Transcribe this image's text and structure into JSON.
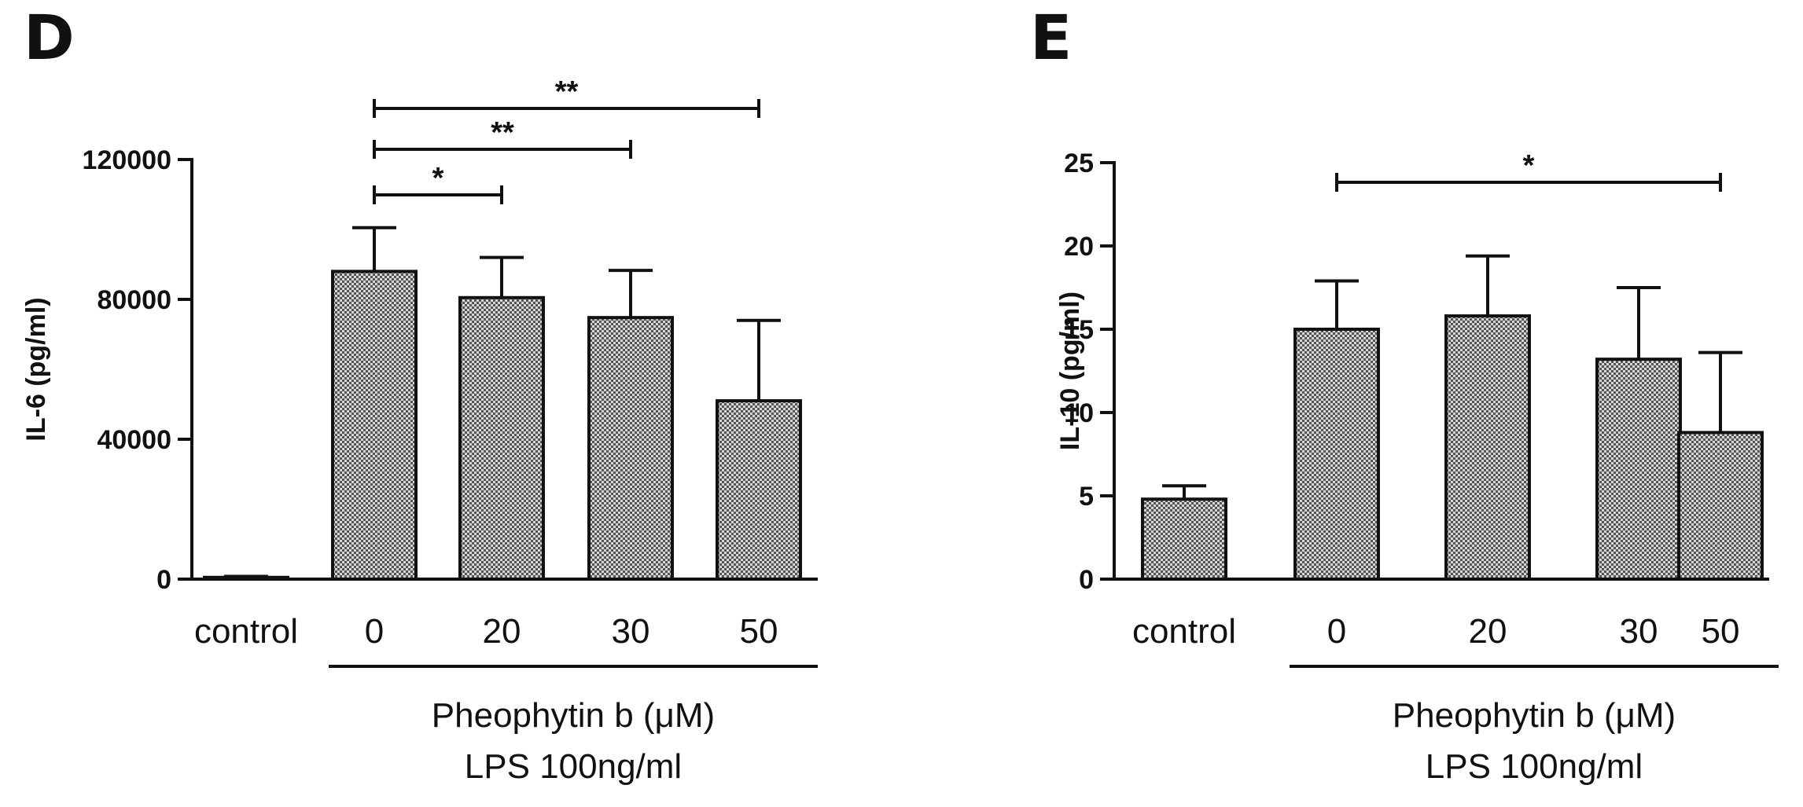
{
  "chart_data": [
    {
      "panel": "D",
      "type": "bar",
      "categories": [
        "control",
        "0",
        "20",
        "30",
        "50"
      ],
      "values": [
        500,
        88000,
        80500,
        74800,
        51000
      ],
      "errors": [
        300,
        12500,
        11500,
        13500,
        23000
      ],
      "ylabel": "IL-6 (pg/ml)",
      "ylim": [
        0,
        120000
      ],
      "yticks": [
        "0",
        "40000",
        "80000",
        "120000"
      ],
      "ytick_values": [
        0,
        40000,
        80000,
        120000
      ],
      "group_label_lines": [
        "Pheophytin b (μM)",
        "LPS 100ng/ml"
      ],
      "significance": [
        {
          "from": 1,
          "to": 2,
          "label": "*"
        },
        {
          "from": 1,
          "to": 3,
          "label": "**"
        },
        {
          "from": 1,
          "to": 4,
          "label": "**"
        }
      ]
    },
    {
      "panel": "E",
      "type": "bar",
      "categories": [
        "control",
        "0",
        "20",
        "30",
        "50"
      ],
      "values": [
        4.8,
        15.0,
        15.8,
        13.2,
        8.8
      ],
      "errors": [
        0.8,
        2.9,
        3.6,
        4.3,
        4.8
      ],
      "ylabel": "IL-10 (pg/ml)",
      "ylim": [
        0,
        25
      ],
      "yticks": [
        "0",
        "5",
        "10",
        "15",
        "20",
        "25"
      ],
      "ytick_values": [
        0,
        5,
        10,
        15,
        20,
        25
      ],
      "group_label_lines": [
        "Pheophytin b (μM)",
        "LPS 100ng/ml"
      ],
      "significance": [
        {
          "from": 1,
          "to": 4,
          "label": "*"
        }
      ]
    }
  ],
  "colors": {
    "bar_fill": "#8a8a8a",
    "stroke": "#111111"
  }
}
